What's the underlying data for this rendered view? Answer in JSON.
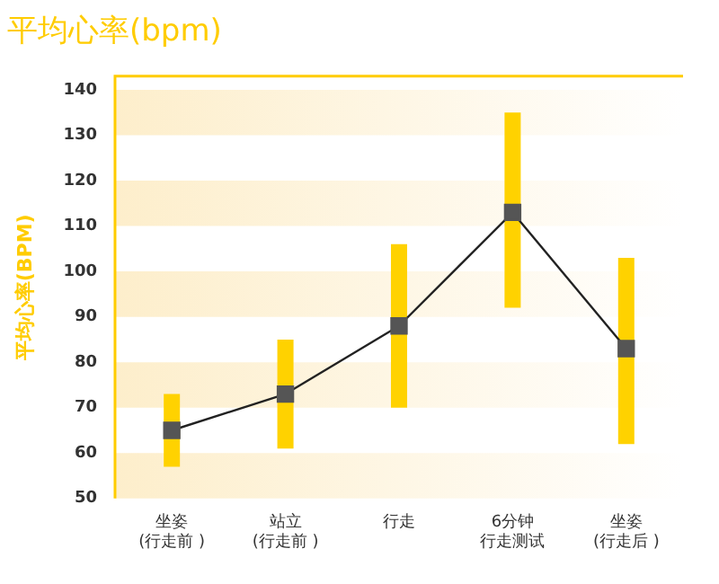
{
  "chart_data": {
    "type": "line",
    "title": "平均心率(bpm)",
    "ylabel": "平均心率(BPM)",
    "categories": [
      "坐姿\n(行走前 )",
      "站立\n(行走前 )",
      "行走",
      "6分钟行走测试",
      "坐姿\n(行走后 )"
    ],
    "series": [
      {
        "color": "#555555",
        "values": [
          65,
          73,
          88,
          113,
          83
        ],
        "errors": [
          [
            57,
            73
          ],
          [
            61,
            85
          ],
          [
            70,
            106
          ],
          [
            92,
            135
          ],
          [
            62,
            103
          ]
        ]
      }
    ],
    "ylim": [
      50,
      143
    ],
    "yticks": [
      50,
      60,
      70,
      80,
      90,
      100,
      110,
      120,
      130,
      140
    ],
    "bands": [
      {
        "axis": "y",
        "from": 50,
        "to": 60,
        "color": "#fdeecb"
      },
      {
        "axis": "y",
        "from": 70,
        "to": 80,
        "color": "#fdeecb"
      },
      {
        "axis": "y",
        "from": 90,
        "to": 100,
        "color": "#fdeecb"
      },
      {
        "axis": "y",
        "from": 110,
        "to": 120,
        "color": "#fdeecb"
      },
      {
        "axis": "y",
        "from": 130,
        "to": 140,
        "color": "#fdeecb"
      }
    ],
    "marker": "square",
    "line_style": "solid",
    "grid": false,
    "legend": false
  }
}
